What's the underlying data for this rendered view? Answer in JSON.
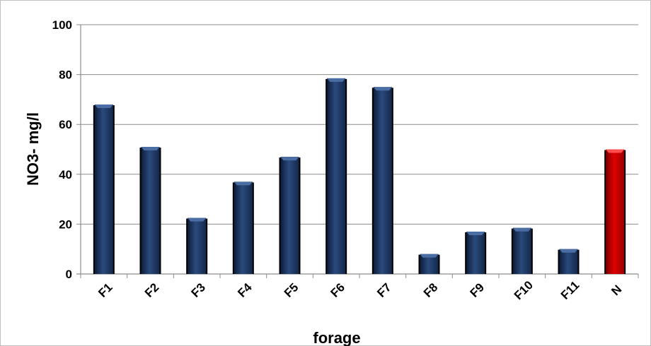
{
  "chart_data": {
    "type": "bar",
    "title": "",
    "xlabel": "forage",
    "ylabel": "NO3- mg/l",
    "ylim": [
      0,
      100
    ],
    "yticks": [
      0,
      20,
      40,
      60,
      80,
      100
    ],
    "grid": true,
    "legend": "none",
    "categories": [
      "F1",
      "F2",
      "F3",
      "F4",
      "F5",
      "F6",
      "F7",
      "F8",
      "F9",
      "F10",
      "F11",
      "N"
    ],
    "values": [
      68,
      51,
      22.5,
      37,
      47,
      78.5,
      75,
      8,
      17,
      18.5,
      10,
      50
    ],
    "colors": {
      "bar": "#1f3a66",
      "bar_highlight": "#4a6ea3",
      "reference_bar": "#cc0000",
      "reference_highlight": "#ff4d4d",
      "grid": "#8c8c8c"
    }
  }
}
